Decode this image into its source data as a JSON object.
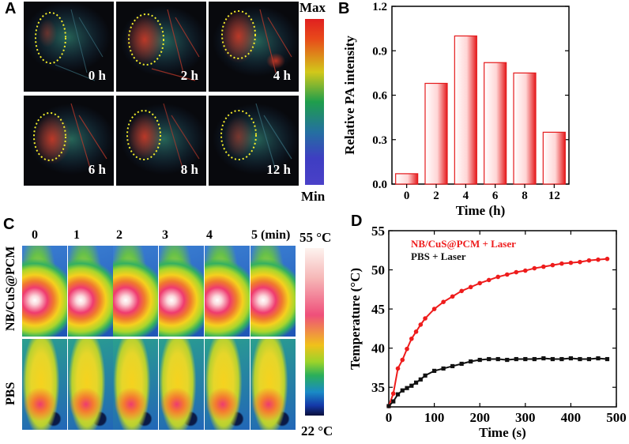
{
  "panels": {
    "A": "A",
    "B": "B",
    "C": "C",
    "D": "D"
  },
  "panelA": {
    "tiles": [
      "0 h",
      "2 h",
      "4 h",
      "6 h",
      "8 h",
      "12 h"
    ],
    "colorbar": {
      "max": "Max",
      "min": "Min"
    }
  },
  "panelC": {
    "columns": [
      "0",
      "1",
      "2",
      "3",
      "4",
      "5 (min)"
    ],
    "rows": [
      "NB/CuS@PCM",
      "PBS"
    ],
    "colorbar": {
      "max": "55 °C",
      "min": "22 °C"
    }
  },
  "chart_data": [
    {
      "id": "B",
      "type": "bar",
      "categories": [
        "0",
        "2",
        "4",
        "6",
        "8",
        "12"
      ],
      "values": [
        0.07,
        0.68,
        1.0,
        0.82,
        0.75,
        0.35
      ],
      "xlabel": "Time (h)",
      "ylabel": "Relative PA intensity",
      "ylim": [
        0,
        1.2
      ],
      "yticks": [
        "0.0",
        "0.3",
        "0.6",
        "0.9",
        "1.2"
      ],
      "bar_color": "#e41a1c"
    },
    {
      "id": "D",
      "type": "line",
      "xlabel": "Time (s)",
      "ylabel": "Temperature (°C)",
      "xlim": [
        0,
        500
      ],
      "ylim": [
        32.5,
        55
      ],
      "xticks": [
        0,
        100,
        200,
        300,
        400,
        500
      ],
      "yticks": [
        35,
        40,
        45,
        50,
        55
      ],
      "series": [
        {
          "name": "NB/CuS@PCM + Laser",
          "color": "#ee1c1c",
          "x": [
            0,
            10,
            20,
            30,
            40,
            50,
            60,
            70,
            80,
            100,
            120,
            140,
            160,
            180,
            200,
            220,
            240,
            260,
            280,
            300,
            320,
            340,
            360,
            380,
            400,
            420,
            440,
            460,
            480
          ],
          "y": [
            32.6,
            34.2,
            37.4,
            38.5,
            39.9,
            41.2,
            42.1,
            43.0,
            43.8,
            45.0,
            45.9,
            46.6,
            47.3,
            47.8,
            48.3,
            48.7,
            49.1,
            49.4,
            49.7,
            49.9,
            50.2,
            50.4,
            50.6,
            50.8,
            50.9,
            51.0,
            51.2,
            51.3,
            51.4
          ]
        },
        {
          "name": "PBS + Laser",
          "color": "#111111",
          "x": [
            0,
            10,
            20,
            30,
            40,
            50,
            60,
            70,
            80,
            100,
            120,
            140,
            160,
            180,
            200,
            220,
            240,
            260,
            280,
            300,
            320,
            340,
            360,
            380,
            400,
            420,
            440,
            460,
            480
          ],
          "y": [
            32.6,
            33.2,
            34.1,
            34.6,
            34.9,
            35.2,
            35.6,
            36.0,
            36.5,
            37.1,
            37.4,
            37.7,
            38.0,
            38.3,
            38.5,
            38.6,
            38.6,
            38.5,
            38.6,
            38.6,
            38.6,
            38.7,
            38.6,
            38.6,
            38.7,
            38.6,
            38.6,
            38.7,
            38.6
          ]
        }
      ]
    }
  ]
}
